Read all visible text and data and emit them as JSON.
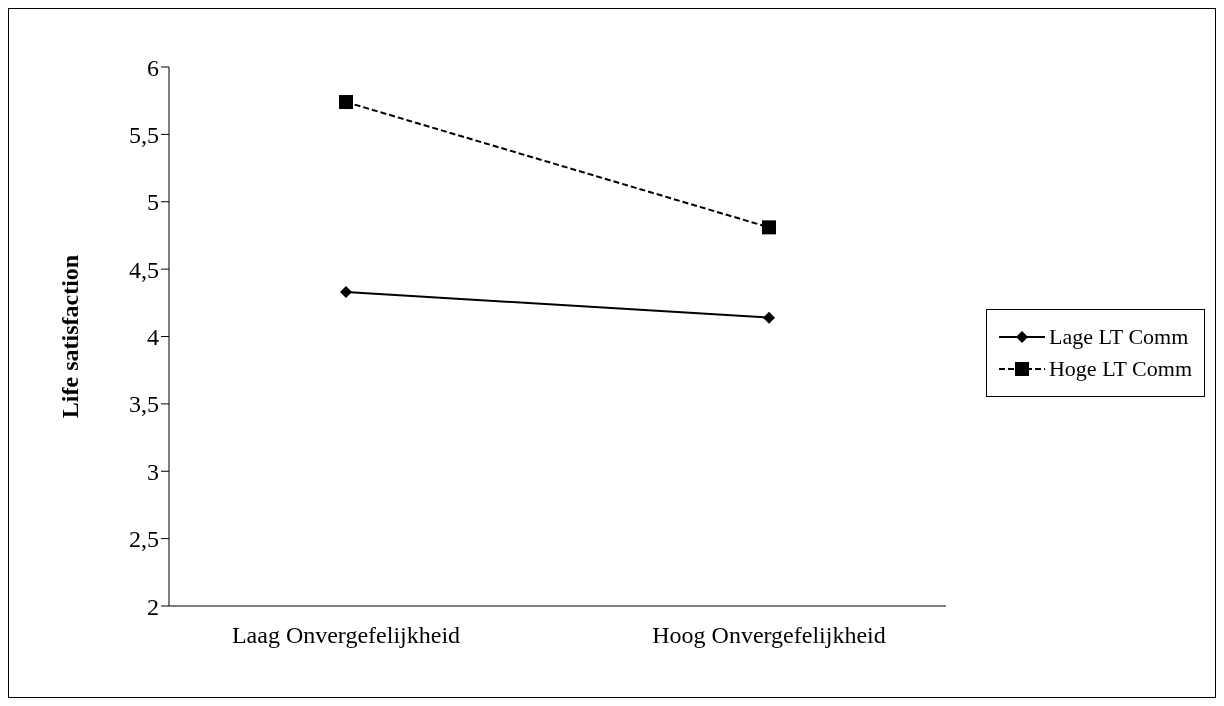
{
  "chart_data": {
    "type": "line",
    "ylabel": "Life satisfaction",
    "categories": [
      "Laag Onvergefelijkheid",
      "Hoog Onvergefelijkheid"
    ],
    "series": [
      {
        "name": "Lage LT Comm",
        "color": "#000000",
        "values": [
          4.33,
          4.14
        ],
        "marker": "diamond",
        "line_style": "solid"
      },
      {
        "name": "Hoge LT Comm",
        "color": "#000000",
        "values": [
          5.74,
          4.81
        ],
        "marker": "square",
        "line_style": "dashed"
      }
    ],
    "ylim": [
      2,
      6
    ],
    "yticks": [
      2,
      {
        "value": 2.5,
        "label": "2,5"
      },
      3,
      {
        "value": 3.5,
        "label": "3,5"
      },
      4,
      {
        "value": 4.5,
        "label": "4,5"
      },
      5,
      {
        "value": 5.5,
        "label": "5,5"
      },
      6
    ],
    "grid": false,
    "legend": "right"
  }
}
